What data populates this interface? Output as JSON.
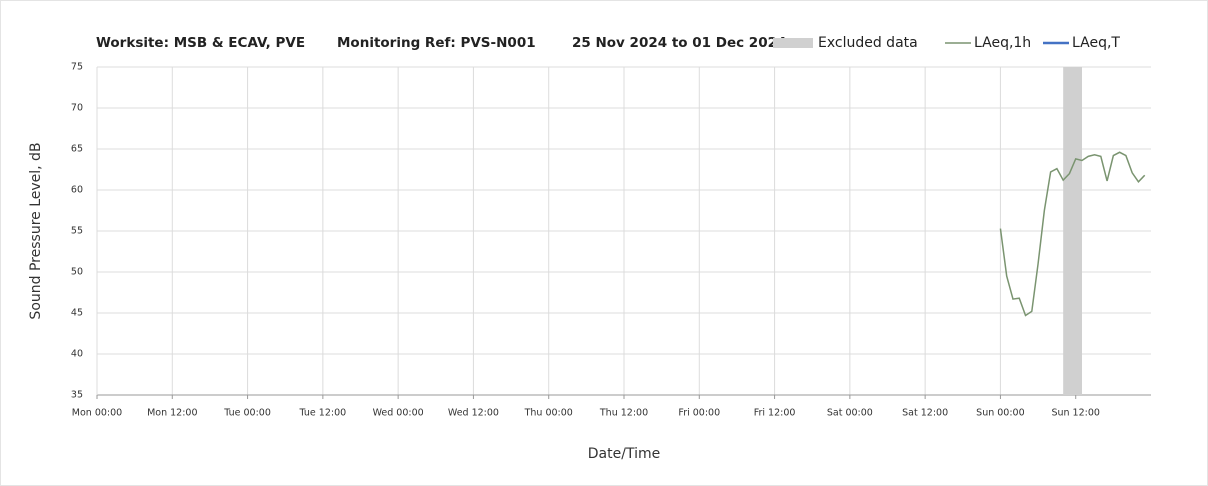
{
  "chart_data": {
    "type": "line",
    "title": [
      "Worksite: MSB & ECAV, PVE",
      "Monitoring Ref: PVS-N001",
      "25 Nov 2024 to 01 Dec 2024"
    ],
    "x_label": "Date/Time",
    "y_label": "Sound Pressure Level, dB",
    "xlim": [
      0,
      168
    ],
    "xticks": [
      {
        "value": 0,
        "label": "Mon 00:00"
      },
      {
        "value": 12,
        "label": "Mon 12:00"
      },
      {
        "value": 24,
        "label": "Tue 00:00"
      },
      {
        "value": 36,
        "label": "Tue 12:00"
      },
      {
        "value": 48,
        "label": "Wed 00:00"
      },
      {
        "value": 60,
        "label": "Wed 12:00"
      },
      {
        "value": 72,
        "label": "Thu 00:00"
      },
      {
        "value": 84,
        "label": "Thu 12:00"
      },
      {
        "value": 96,
        "label": "Fri 00:00"
      },
      {
        "value": 108,
        "label": "Fri 12:00"
      },
      {
        "value": 120,
        "label": "Sat 00:00"
      },
      {
        "value": 132,
        "label": "Sat 12:00"
      },
      {
        "value": 144,
        "label": "Sun 00:00"
      },
      {
        "value": 156,
        "label": "Sun 12:00"
      }
    ],
    "ylim": [
      35,
      75
    ],
    "yticks": [
      35,
      40,
      45,
      50,
      55,
      60,
      65,
      70,
      75
    ],
    "grid": true,
    "excluded": {
      "name": "Excluded data",
      "color": "#d0d0d0",
      "range": [
        154,
        157
      ]
    },
    "x": [
      144,
      145,
      146,
      147,
      148,
      149,
      150,
      151,
      152,
      153,
      154,
      155,
      156,
      157,
      158,
      159,
      160,
      161,
      162,
      163,
      164,
      165,
      166,
      167
    ],
    "series": [
      {
        "name": "LAeq,1h",
        "color": "#7a9470",
        "values": [
          55.3,
          49.5,
          46.7,
          46.8,
          44.7,
          45.2,
          51,
          57.5,
          62.2,
          62.6,
          61.2,
          62,
          63.8,
          63.6,
          64.1,
          64.3,
          64.1,
          61.1,
          64.2,
          64.6,
          64.2,
          62.1,
          61,
          61.8
        ]
      },
      {
        "name": "LAeq,T",
        "color": "#4472c4",
        "values": [
          null,
          null,
          null,
          null,
          null,
          null,
          null,
          null,
          null,
          null,
          null,
          null,
          null,
          null,
          null,
          null,
          null,
          null,
          null,
          null,
          null,
          null,
          null,
          null
        ]
      }
    ]
  }
}
